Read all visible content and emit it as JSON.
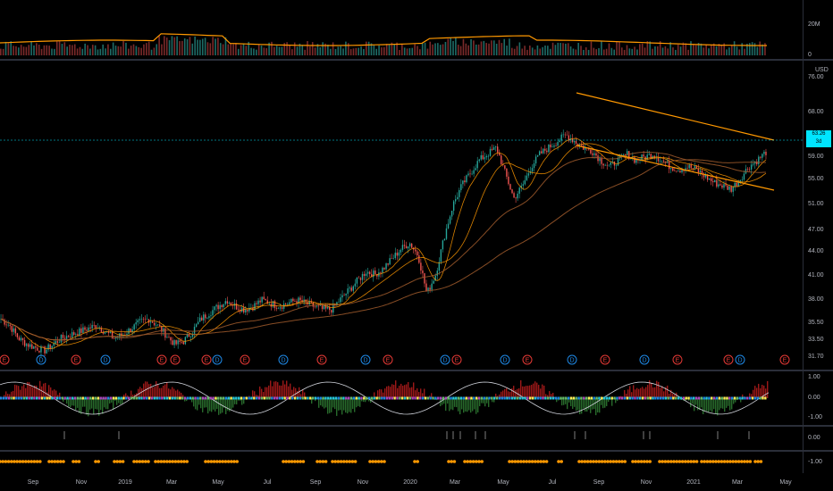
{
  "volume_axis": [
    "20M",
    "0"
  ],
  "price_axis": {
    "currency": "USD",
    "labels": [
      "76.00",
      "68.00",
      "59.00",
      "55.00",
      "51.00",
      "47.00",
      "44.00",
      "41.00",
      "38.00",
      "35.50",
      "33.50",
      "31.70"
    ],
    "current_price": "63.26",
    "current_price_sub": "3d"
  },
  "osc1_axis": [
    "1.00",
    "0.00",
    "-1.00"
  ],
  "osc2_axis": [
    "0.00"
  ],
  "osc3_axis": [
    "-1.00"
  ],
  "x_axis": [
    "Sep",
    "Nov",
    "2019",
    "Mar",
    "May",
    "Jul",
    "Sep",
    "Nov",
    "2020",
    "Mar",
    "May",
    "Jul",
    "Sep",
    "Nov",
    "2021",
    "Mar",
    "May"
  ],
  "earnings_markers": [
    "E",
    "D",
    "E",
    "D",
    "E",
    "E",
    "E",
    "D",
    "E",
    "D",
    "E",
    "D",
    "E",
    "D",
    "E",
    "D",
    "E",
    "D",
    "E",
    "D",
    "E",
    "E",
    "D",
    "E"
  ],
  "colors": {
    "background": "#000000",
    "candle_up": "#26a69a",
    "candle_down": "#ef5350",
    "ma_orange": "#ff9800",
    "ma_brown": "#a05a2c",
    "channel": "#ff9800",
    "price_label_bg": "#00e5ff",
    "hist_up": "#b71c1c",
    "hist_down": "#2e7d32",
    "dot_orange": "#ff9800"
  },
  "chart_data": {
    "type": "line",
    "series": [
      {
        "values": [
          37,
          36,
          34,
          33,
          32.5,
          32,
          33,
          34,
          34.5,
          35,
          35.5,
          36,
          35,
          34,
          34.5,
          35.5,
          36.5,
          37,
          36,
          34.5,
          33,
          33.5,
          35,
          37,
          38,
          39,
          40,
          39,
          38.5,
          39,
          40,
          39.5,
          39,
          39.5,
          40,
          39.5,
          39,
          38.5,
          38.5,
          40,
          41.5,
          43,
          44.5,
          44,
          45,
          46.5,
          48,
          49,
          47,
          41,
          44,
          50,
          55,
          58,
          60,
          62,
          63,
          64,
          60,
          56,
          58,
          61,
          63,
          64,
          65,
          66,
          65,
          64,
          63.5,
          62,
          61,
          62,
          63,
          62,
          62.5,
          63,
          62,
          61,
          60.5,
          61,
          60.5,
          59.5,
          58.5,
          58,
          57.5,
          59,
          61,
          62,
          63.3
        ]
      }
    ],
    "ylim": [
      31,
      76
    ]
  }
}
